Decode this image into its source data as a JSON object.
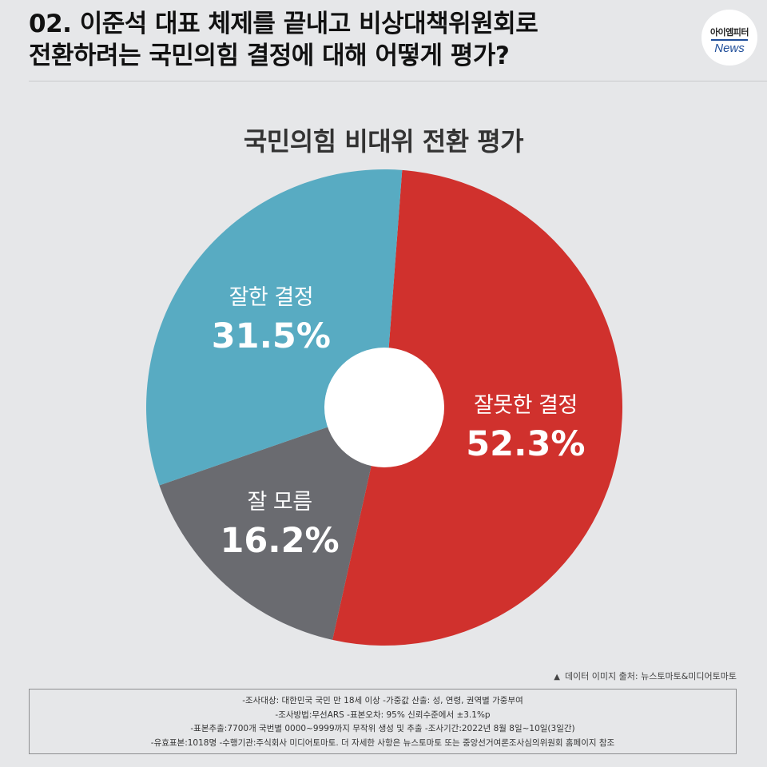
{
  "header": {
    "title_line1": "02. 이준석 대표 체제를 끝내고 비상대책위원회로",
    "title_line2": "전환하려는 국민의힘 결정에 대해 어떻게 평가?",
    "logo_top": "아이엠피터",
    "logo_bottom": "News"
  },
  "chart_data": {
    "type": "pie",
    "title": "국민의힘 비대위 전환 평가",
    "slices": [
      {
        "label": "잘못한 결정",
        "value": 52.3,
        "display": "52.3%",
        "color": "#d0312d"
      },
      {
        "label": "잘 모름",
        "value": 16.2,
        "display": "16.2%",
        "color": "#6a6b70"
      },
      {
        "label": "잘한 결정",
        "value": 31.5,
        "display": "31.5%",
        "color": "#58abc2"
      }
    ],
    "donut_hole_color": "#ffffff"
  },
  "source": "데이터 이미지 출처: 뉴스토마토&미디어토마토",
  "notes": [
    "-조사대상: 대한민국 국민 만 18세 이상  -가중값 산출: 성, 연령, 권역별 가중부여",
    "-조사방법:무선ARS -표본오차: 95% 신뢰수준에서 ±3.1%p",
    "-표본추출:7700개 국번별 0000~9999까지 무작위 생성 및 추출 -조사기간:2022년 8월 8일~10일(3일간)",
    "-유효표본:1018명 -수행기관:주식회사 미디어토마토. 더 자세한 사항은 뉴스토마토 또는 중앙선거여론조사심의위원회 홈페이지 참조"
  ]
}
